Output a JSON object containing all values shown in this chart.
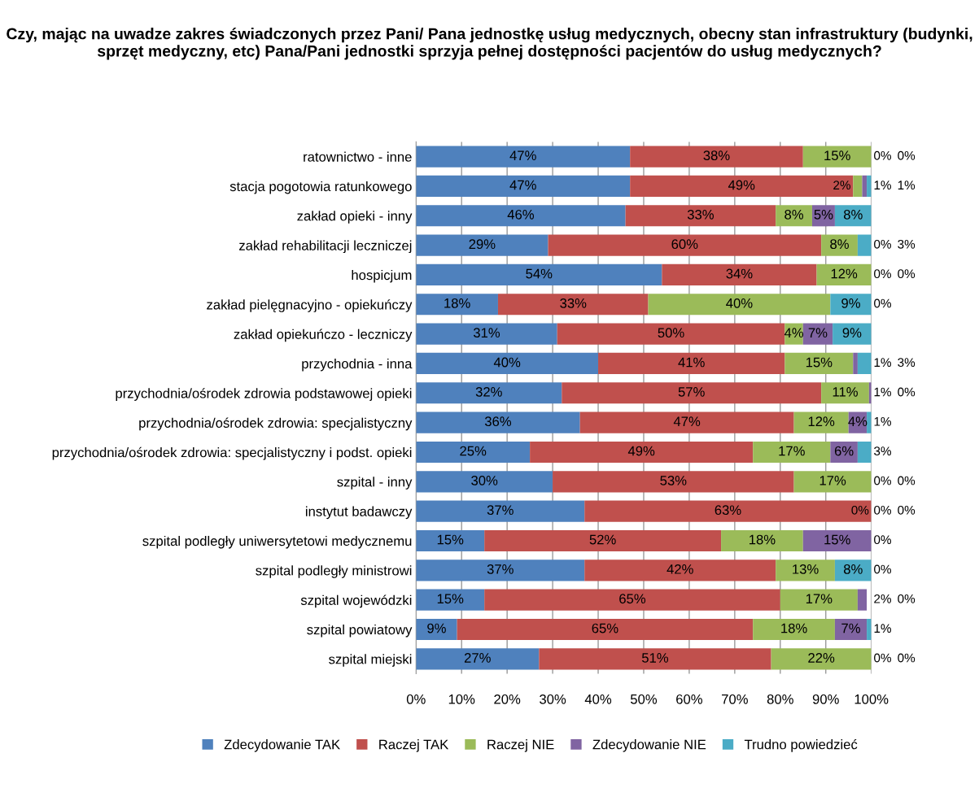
{
  "chart_data": {
    "type": "bar",
    "orientation": "horizontal",
    "stacked": true,
    "title": "Czy, mając na uwadze zakres świadczonych przez Pani/ Pana jednostkę usług medycznych, obecny stan infrastruktury (budynki, sprzęt medyczny, etc) Pana/Pani jednostki sprzyja pełnej dostępności pacjentów do usług medycznych?",
    "categories": [
      "ratownictwo - inne",
      "stacja pogotowia ratunkowego",
      "zakład opieki - inny",
      "zakład rehabilitacji leczniczej",
      "hospicjum",
      "zakład pielęgnacyjno - opiekuńczy",
      "zakład opiekuńczo - leczniczy",
      "przychodnia - inna",
      "przychodnia/ośrodek zdrowia podstawowej opieki",
      "przychodnia/ośrodek zdrowia: specjalistyczny",
      "przychodnia/ośrodek zdrowia: specjalistyczny i podst. opieki",
      "szpital - inny",
      "instytut badawczy",
      "szpital podległy uniwersytetowi medycznemu",
      "szpital podległy ministrowi",
      "szpital wojewódzki",
      "szpital powiatowy",
      "szpital miejski"
    ],
    "series": [
      {
        "name": "Zdecydowanie TAK",
        "color": "#4f81bd",
        "values": [
          47,
          47,
          46,
          29,
          54,
          18,
          31,
          40,
          32,
          36,
          25,
          30,
          37,
          15,
          37,
          15,
          9,
          27
        ],
        "value_labels": [
          "47%",
          "47%",
          "46%",
          "29%",
          "54%",
          "18%",
          "31%",
          "40%",
          "32%",
          "36%",
          "25%",
          "30%",
          "37%",
          "15%",
          "37%",
          "15%",
          "9%",
          "27%"
        ]
      },
      {
        "name": "Raczej TAK",
        "color": "#c0504d",
        "values": [
          38,
          49,
          33,
          60,
          34,
          33,
          50,
          41,
          57,
          47,
          49,
          53,
          63,
          52,
          42,
          65,
          65,
          51
        ],
        "value_labels": [
          "38%",
          "49%",
          "33%",
          "60%",
          "34%",
          "33%",
          "50%",
          "41%",
          "57%",
          "47%",
          "49%",
          "53%",
          "63%",
          "52%",
          "42%",
          "65%",
          "65%",
          "51%"
        ]
      },
      {
        "name": "Raczej NIE",
        "color": "#9bbb59",
        "values": [
          15,
          2,
          8,
          8,
          12,
          40,
          4,
          15,
          10.5,
          12,
          17,
          17,
          0,
          18,
          13,
          17,
          18,
          22
        ],
        "value_labels": [
          "15%",
          "2%",
          "8%",
          "8%",
          "12%",
          "40%",
          "4%",
          "15%",
          "11%",
          "12%",
          "17%",
          "17%",
          "0%",
          "18%",
          "13%",
          "17%",
          "18%",
          "22%"
        ]
      },
      {
        "name": "Zdecydowanie NIE",
        "color": "#8064a2",
        "values": [
          0,
          1,
          5,
          0,
          0,
          0,
          6.5,
          1,
          0.5,
          4,
          6,
          0,
          0,
          15,
          0,
          2,
          7,
          0
        ],
        "value_labels": [
          "0%",
          "1%",
          "5%",
          "0%",
          "0%",
          "0%",
          "7%",
          "1%",
          "1%",
          "4%",
          "6%",
          "0%",
          "0%",
          "15%",
          "0%",
          "2%",
          "7%",
          "0%"
        ]
      },
      {
        "name": "Trudno powiedzieć",
        "color": "#4bacc6",
        "values": [
          0,
          1,
          8,
          3,
          0,
          9,
          8.5,
          3,
          0,
          1,
          3,
          0,
          0,
          0,
          8,
          0,
          1,
          0
        ],
        "value_labels": [
          "0%",
          "1%",
          "8%",
          "3%",
          "0%",
          "9%",
          "9%",
          "3%",
          "0%",
          "1%",
          "3%",
          "0%",
          "0%",
          "0%",
          "8%",
          "0%",
          "1%",
          "0%"
        ]
      }
    ],
    "xlim": [
      0,
      100
    ],
    "xticks": [
      {
        "value": 0,
        "label": "0%"
      },
      {
        "value": 10,
        "label": "10%"
      },
      {
        "value": 20,
        "label": "20%"
      },
      {
        "value": 30,
        "label": "30%"
      },
      {
        "value": 40,
        "label": "40%"
      },
      {
        "value": 50,
        "label": "50%"
      },
      {
        "value": 60,
        "label": "60%"
      },
      {
        "value": 70,
        "label": "70%"
      },
      {
        "value": 80,
        "label": "80%"
      },
      {
        "value": 90,
        "label": "90%"
      },
      {
        "value": 100,
        "label": "100%"
      }
    ],
    "grid": "x",
    "legend": "bottom"
  }
}
